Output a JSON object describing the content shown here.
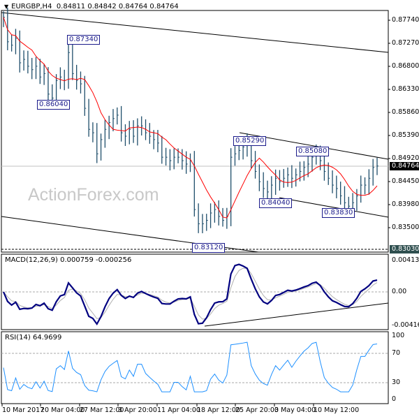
{
  "header": {
    "symbol": "EURGBP,H4",
    "ohlc": "0.84811 0.84842 0.84764 0.84764"
  },
  "watermark": "ActionForex.com",
  "colors": {
    "bars": "#1f4e6b",
    "ma": "#ff0000",
    "macd": "#000080",
    "signal": "#b0b0b0",
    "rsi": "#1e90ff",
    "current_price_box": "#000000",
    "level_box": "#2f4f4f"
  },
  "chart_data": {
    "type": "ohlc",
    "symbol": "EURGBP",
    "timeframe": "H4",
    "x_tick_labels": [
      "10 Mar 2017",
      "20 Mar 04:00",
      "27 Mar 12:00",
      "3 Apr 20:00",
      "11 Apr 04:00",
      "18 Apr 12:00",
      "25 Apr 20:00",
      "3 May 04:00",
      "10 May 12:00"
    ],
    "y_tick_labels": [
      "0.87740",
      "0.87270",
      "0.86800",
      "0.86330",
      "0.85860",
      "0.85390",
      "0.84920",
      "0.84450",
      "0.83980",
      "0.83500"
    ],
    "ylim": [
      0.83,
      0.8795
    ],
    "current_price": "0.84764",
    "marked_level": "0.83030",
    "approx_closes": [
      0.878,
      0.873,
      0.8723,
      0.8737,
      0.8687,
      0.8694,
      0.868,
      0.8673,
      0.868,
      0.8658,
      0.8665,
      0.8623,
      0.8615,
      0.8651,
      0.8658,
      0.8651,
      0.8708,
      0.8665,
      0.8651,
      0.8644,
      0.8594,
      0.8551,
      0.8544,
      0.8501,
      0.853,
      0.8551,
      0.8565,
      0.8573,
      0.858,
      0.8544,
      0.8537,
      0.8551,
      0.8537,
      0.8558,
      0.8558,
      0.8544,
      0.8537,
      0.853,
      0.8523,
      0.8494,
      0.8494,
      0.8487,
      0.8494,
      0.8494,
      0.8487,
      0.848,
      0.8487,
      0.8387,
      0.8358,
      0.8358,
      0.8365,
      0.838,
      0.8387,
      0.8373,
      0.8365,
      0.8373,
      0.8494,
      0.8501,
      0.8508,
      0.8515,
      0.8523,
      0.8487,
      0.8465,
      0.8444,
      0.843,
      0.8423,
      0.8437,
      0.8451,
      0.8444,
      0.8451,
      0.8458,
      0.8451,
      0.8458,
      0.8465,
      0.8473,
      0.848,
      0.8494,
      0.8501,
      0.8487,
      0.8465,
      0.8451,
      0.8437,
      0.843,
      0.8415,
      0.8401,
      0.8394,
      0.8401,
      0.8415,
      0.8437,
      0.8437,
      0.8451,
      0.8473,
      0.8476
    ],
    "annotations": [
      "0.87340",
      "0.86040",
      "0.85290",
      "0.85080",
      "0.84040",
      "0.83830",
      "0.83120"
    ],
    "moving_average": "red line",
    "macd": {
      "title": "MACD(12,26,9) 0.000759 -0.000256",
      "y_tick_labels": [
        "0.004131",
        "0.00",
        "-0.004162"
      ]
    },
    "rsi": {
      "title": "RSI(14) 64.9699",
      "y_tick_labels": [
        "100",
        "70",
        "30",
        "0"
      ],
      "levels": [
        70,
        30
      ]
    }
  }
}
